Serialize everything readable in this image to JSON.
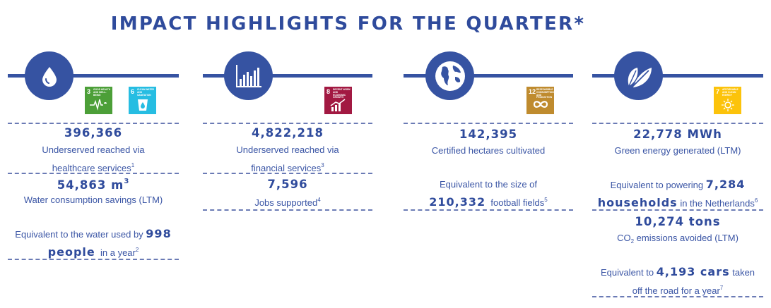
{
  "title": "IMPACT HIGHLIGHTS FOR THE QUARTER*",
  "colors": {
    "primary": "#3653a2",
    "text": "#2f4b9c",
    "sdg3": "#4c9f38",
    "sdg6": "#26bde2",
    "sdg7": "#fcc30b",
    "sdg8": "#a21942",
    "sdg12": "#bf8b2e"
  },
  "health": {
    "icon": "water-drop-icon",
    "sdg": [
      {
        "num": "3",
        "text": "GOOD HEALTH AND WELL-BEING",
        "icon": "heartbeat-icon"
      },
      {
        "num": "6",
        "text": "CLEAN WATER AND SANITATION",
        "icon": "water-glass-icon"
      }
    ],
    "stat1": "396,366",
    "desc1a": "Underserved reached via",
    "desc1b": "healthcare services",
    "sup1": "1",
    "stat2": "54,863 m",
    "stat2_sup": "3",
    "desc2": "Water consumption savings (LTM)",
    "eq_pre": "Equivalent to the water used by",
    "eq_num": "998",
    "eq_unit": "people",
    "eq_post": "in a year",
    "sup2": "2"
  },
  "finance": {
    "icon": "bar-chart-icon",
    "sdg": [
      {
        "num": "8",
        "text": "DECENT WORK AND ECONOMIC GROWTH",
        "icon": "growth-chart-icon"
      }
    ],
    "stat1": "4,822,218",
    "desc1a": "Underserved reached via",
    "desc1b": "financial services",
    "sup1": "3",
    "stat2": "7,596",
    "desc2": "Jobs supported",
    "sup2": "4"
  },
  "land": {
    "icon": "globe-icon",
    "sdg": [
      {
        "num": "12",
        "text": "RESPONSIBLE CONSUMPTION AND PRODUCTION",
        "icon": "infinity-icon"
      }
    ],
    "stat1": "142,395",
    "desc1": "Certified hectares cultivated",
    "eq_pre": "Equivalent to the size of",
    "eq_num": "210,332",
    "eq_post": "football fields",
    "sup1": "5"
  },
  "energy": {
    "icon": "leaves-icon",
    "sdg": [
      {
        "num": "7",
        "text": "AFFORDABLE AND CLEAN ENERGY",
        "icon": "sun-icon"
      }
    ],
    "stat1": "22,778 MWh",
    "desc1": "Green energy generated (LTM)",
    "eq1_pre": "Equivalent to powering",
    "eq1_num": "7,284",
    "eq1_unit": "households",
    "eq1_post": "in the Netherlands",
    "sup1": "6",
    "stat2": "10,274 tons",
    "desc2_pre": "CO",
    "desc2_sub": "2",
    "desc2_post": " emissions avoided (LTM)",
    "eq2_pre": "Equivalent to",
    "eq2_num": "4,193 cars",
    "eq2_post1": "taken",
    "eq2_post2": "off the road for a year",
    "sup2": "7"
  }
}
